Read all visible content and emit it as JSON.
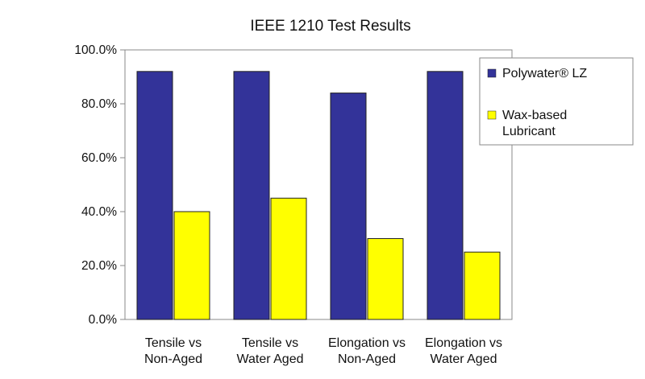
{
  "chart_data": {
    "type": "bar",
    "title": "IEEE 1210 Test Results",
    "xlabel": "",
    "ylabel": "",
    "ylim": [
      0,
      100
    ],
    "yticks": [
      "0.0%",
      "20.0%",
      "40.0%",
      "60.0%",
      "80.0%",
      "100.0%"
    ],
    "categories": [
      [
        "Tensile vs",
        "Non-Aged"
      ],
      [
        "Tensile vs",
        "Water Aged"
      ],
      [
        "Elongation vs",
        "Non-Aged"
      ],
      [
        "Elongation vs",
        "Water Aged"
      ]
    ],
    "series": [
      {
        "name": "Polywater® LZ",
        "values": [
          92,
          92,
          84,
          92
        ],
        "color": "#333399"
      },
      {
        "name": "Wax-based Lubricant",
        "legend_lines": [
          "Wax-based",
          "Lubricant"
        ],
        "values": [
          40,
          45,
          30,
          25
        ],
        "color": "#ffff00"
      }
    ],
    "grid": false,
    "legend": "right"
  }
}
